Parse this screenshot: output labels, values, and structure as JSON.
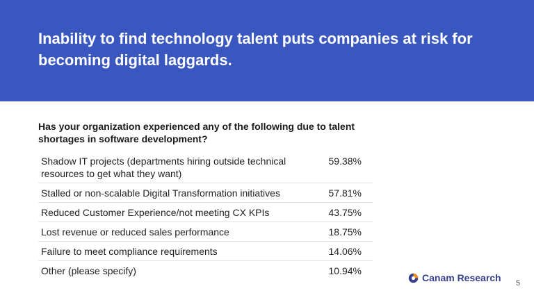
{
  "slide": {
    "headline": "Inability to find technology talent puts companies at risk for becoming digital laggards.",
    "question": "Has your organization experienced any of the following due to talent shortages in software development?",
    "rows": [
      {
        "label": "Shadow IT projects (departments hiring outside technical resources to get what they want)",
        "value": "59.38%"
      },
      {
        "label": "Stalled or non-scalable Digital Transformation initiatives",
        "value": "57.81%"
      },
      {
        "label": "Reduced Customer Experience/not meeting CX KPIs",
        "value": "43.75%"
      },
      {
        "label": "Lost revenue or reduced sales performance",
        "value": "18.75%"
      },
      {
        "label": "Failure to meet compliance requirements",
        "value": "14.06%"
      },
      {
        "label": "Other (please specify)",
        "value": "10.94%"
      }
    ],
    "logo_text": "Canam Research",
    "page_number": "5"
  },
  "colors": {
    "banner": "#3a57c0",
    "logo_text": "#34408a",
    "logo_orange": "#f08a1c"
  }
}
